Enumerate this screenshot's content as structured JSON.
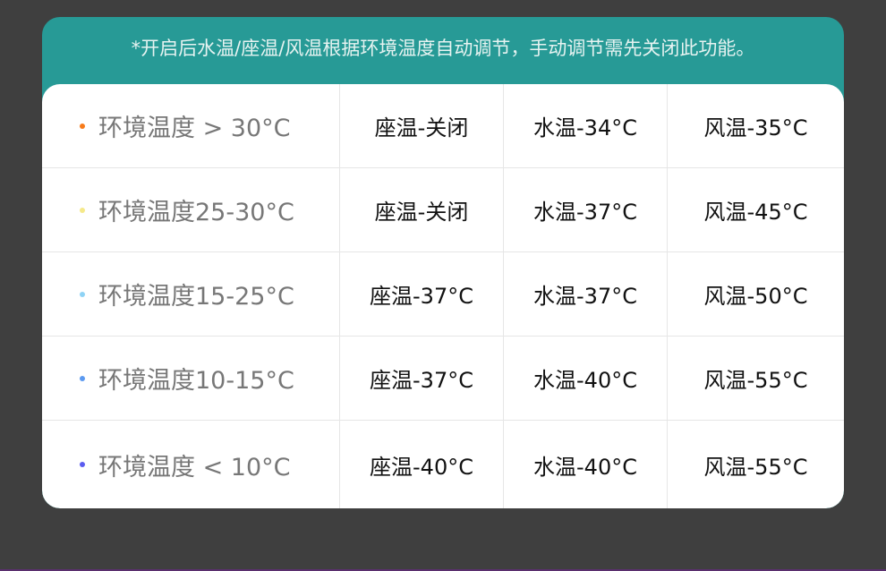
{
  "note": "*开启后水温/座温/风温根据环境温度自动调节，手动调节需先关闭此功能。",
  "rows": [
    {
      "env": "环境温度 > 30°C",
      "bullet_color": "#f77b1a",
      "seat": "座温-关闭",
      "water": "水温-34°C",
      "air": "风温-35°C"
    },
    {
      "env": "环境温度25-30°C",
      "bullet_color": "#f5e98a",
      "seat": "座温-关闭",
      "water": "水温-37°C",
      "air": "风温-45°C"
    },
    {
      "env": "环境温度15-25°C",
      "bullet_color": "#8fd3f5",
      "seat": "座温-37°C",
      "water": "水温-37°C",
      "air": "风温-50°C"
    },
    {
      "env": "环境温度10-15°C",
      "bullet_color": "#5c9af0",
      "seat": "座温-37°C",
      "water": "水温-40°C",
      "air": "风温-55°C"
    },
    {
      "env": "环境温度 < 10°C",
      "bullet_color": "#5b5cf0",
      "seat": "座温-40°C",
      "water": "水温-40°C",
      "air": "风温-55°C"
    }
  ],
  "colors": {
    "header": "#279a96",
    "background": "#3f3f3f"
  }
}
